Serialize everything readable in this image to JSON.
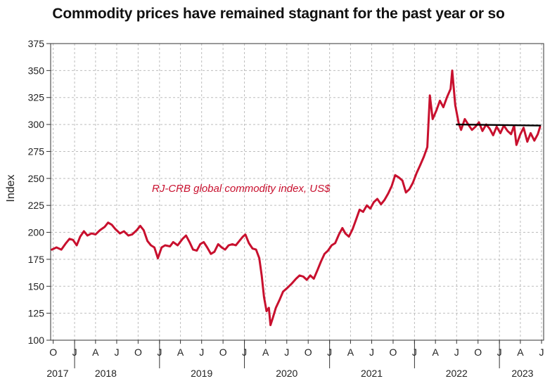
{
  "chart_data": {
    "type": "line",
    "title": "Commodity prices have remained stagnant for the past year or so",
    "xlabel": "",
    "ylabel": "Index",
    "ylim": [
      100,
      375
    ],
    "yticks": [
      100,
      125,
      150,
      175,
      200,
      225,
      250,
      275,
      300,
      325,
      350,
      375
    ],
    "xlim": [
      "2017-09-20",
      "2023-07-10"
    ],
    "month_ticks": [
      {
        "label": "O",
        "date": "2017-10-01"
      },
      {
        "label": "J",
        "date": "2018-01-01"
      },
      {
        "label": "A",
        "date": "2018-04-01"
      },
      {
        "label": "J",
        "date": "2018-07-01"
      },
      {
        "label": "O",
        "date": "2018-10-01"
      },
      {
        "label": "J",
        "date": "2019-01-01"
      },
      {
        "label": "A",
        "date": "2019-04-01"
      },
      {
        "label": "J",
        "date": "2019-07-01"
      },
      {
        "label": "O",
        "date": "2019-10-01"
      },
      {
        "label": "J",
        "date": "2020-01-01"
      },
      {
        "label": "A",
        "date": "2020-04-01"
      },
      {
        "label": "J",
        "date": "2020-07-01"
      },
      {
        "label": "O",
        "date": "2020-10-01"
      },
      {
        "label": "J",
        "date": "2021-01-01"
      },
      {
        "label": "A",
        "date": "2021-04-01"
      },
      {
        "label": "J",
        "date": "2021-07-01"
      },
      {
        "label": "O",
        "date": "2021-10-01"
      },
      {
        "label": "J",
        "date": "2022-01-01"
      },
      {
        "label": "A",
        "date": "2022-04-01"
      },
      {
        "label": "J",
        "date": "2022-07-01"
      },
      {
        "label": "O",
        "date": "2022-10-01"
      },
      {
        "label": "J",
        "date": "2023-01-01"
      },
      {
        "label": "A",
        "date": "2023-04-01"
      },
      {
        "label": "J",
        "date": "2023-07-01"
      }
    ],
    "year_labels": [
      {
        "label": "2017",
        "date": "2017-10-20"
      },
      {
        "label": "2018",
        "date": "2018-05-15"
      },
      {
        "label": "2019",
        "date": "2019-07-01"
      },
      {
        "label": "2020",
        "date": "2020-07-01"
      },
      {
        "label": "2021",
        "date": "2021-07-01"
      },
      {
        "label": "2022",
        "date": "2022-07-01"
      },
      {
        "label": "2023",
        "date": "2023-04-10"
      }
    ],
    "grid": true,
    "annotation": "RJ-CRB global commodity index, US$",
    "series": [
      {
        "color": "#c8102e",
        "points": [
          [
            "2017-09-25",
            184
          ],
          [
            "2017-10-15",
            186
          ],
          [
            "2017-11-05",
            184
          ],
          [
            "2017-11-25",
            190
          ],
          [
            "2017-12-10",
            194
          ],
          [
            "2017-12-25",
            193
          ],
          [
            "2018-01-10",
            188
          ],
          [
            "2018-01-25",
            196
          ],
          [
            "2018-02-10",
            201
          ],
          [
            "2018-02-25",
            197
          ],
          [
            "2018-03-15",
            199
          ],
          [
            "2018-04-01",
            198
          ],
          [
            "2018-04-20",
            202
          ],
          [
            "2018-05-10",
            205
          ],
          [
            "2018-05-25",
            209
          ],
          [
            "2018-06-10",
            207
          ],
          [
            "2018-06-25",
            203
          ],
          [
            "2018-07-15",
            199
          ],
          [
            "2018-08-01",
            201
          ],
          [
            "2018-08-20",
            197
          ],
          [
            "2018-09-05",
            198
          ],
          [
            "2018-09-25",
            202
          ],
          [
            "2018-10-10",
            206
          ],
          [
            "2018-10-25",
            202
          ],
          [
            "2018-11-10",
            192
          ],
          [
            "2018-11-25",
            188
          ],
          [
            "2018-12-10",
            186
          ],
          [
            "2018-12-25",
            176
          ],
          [
            "2019-01-10",
            186
          ],
          [
            "2019-01-25",
            188
          ],
          [
            "2019-02-15",
            187
          ],
          [
            "2019-03-01",
            191
          ],
          [
            "2019-03-20",
            188
          ],
          [
            "2019-04-10",
            194
          ],
          [
            "2019-04-25",
            197
          ],
          [
            "2019-05-10",
            191
          ],
          [
            "2019-05-25",
            184
          ],
          [
            "2019-06-10",
            183
          ],
          [
            "2019-06-25",
            189
          ],
          [
            "2019-07-10",
            191
          ],
          [
            "2019-07-25",
            186
          ],
          [
            "2019-08-10",
            180
          ],
          [
            "2019-08-25",
            182
          ],
          [
            "2019-09-10",
            189
          ],
          [
            "2019-09-25",
            186
          ],
          [
            "2019-10-10",
            184
          ],
          [
            "2019-10-25",
            188
          ],
          [
            "2019-11-10",
            189
          ],
          [
            "2019-11-25",
            188
          ],
          [
            "2019-12-10",
            192
          ],
          [
            "2019-12-25",
            196
          ],
          [
            "2020-01-05",
            198
          ],
          [
            "2020-01-20",
            190
          ],
          [
            "2020-02-05",
            185
          ],
          [
            "2020-02-20",
            184
          ],
          [
            "2020-03-05",
            176
          ],
          [
            "2020-03-15",
            160
          ],
          [
            "2020-03-25",
            140
          ],
          [
            "2020-04-05",
            127
          ],
          [
            "2020-04-15",
            130
          ],
          [
            "2020-04-22",
            114
          ],
          [
            "2020-05-01",
            120
          ],
          [
            "2020-05-15",
            130
          ],
          [
            "2020-06-01",
            138
          ],
          [
            "2020-06-15",
            145
          ],
          [
            "2020-07-01",
            148
          ],
          [
            "2020-07-20",
            152
          ],
          [
            "2020-08-10",
            157
          ],
          [
            "2020-08-25",
            160
          ],
          [
            "2020-09-10",
            159
          ],
          [
            "2020-09-25",
            156
          ],
          [
            "2020-10-10",
            160
          ],
          [
            "2020-10-25",
            157
          ],
          [
            "2020-11-10",
            165
          ],
          [
            "2020-11-25",
            173
          ],
          [
            "2020-12-10",
            180
          ],
          [
            "2020-12-25",
            183
          ],
          [
            "2021-01-10",
            188
          ],
          [
            "2021-01-25",
            190
          ],
          [
            "2021-02-10",
            198
          ],
          [
            "2021-02-25",
            204
          ],
          [
            "2021-03-10",
            199
          ],
          [
            "2021-03-25",
            196
          ],
          [
            "2021-04-10",
            203
          ],
          [
            "2021-04-25",
            212
          ],
          [
            "2021-05-10",
            221
          ],
          [
            "2021-05-25",
            219
          ],
          [
            "2021-06-10",
            225
          ],
          [
            "2021-06-25",
            222
          ],
          [
            "2021-07-10",
            228
          ],
          [
            "2021-07-25",
            231
          ],
          [
            "2021-08-10",
            226
          ],
          [
            "2021-08-25",
            230
          ],
          [
            "2021-09-10",
            236
          ],
          [
            "2021-09-25",
            243
          ],
          [
            "2021-10-10",
            253
          ],
          [
            "2021-10-25",
            251
          ],
          [
            "2021-11-10",
            248
          ],
          [
            "2021-11-25",
            237
          ],
          [
            "2021-12-10",
            240
          ],
          [
            "2021-12-25",
            246
          ],
          [
            "2022-01-10",
            255
          ],
          [
            "2022-01-25",
            262
          ],
          [
            "2022-02-10",
            270
          ],
          [
            "2022-02-25",
            279
          ],
          [
            "2022-03-08",
            327
          ],
          [
            "2022-03-20",
            305
          ],
          [
            "2022-04-05",
            313
          ],
          [
            "2022-04-20",
            322
          ],
          [
            "2022-05-05",
            316
          ],
          [
            "2022-05-20",
            325
          ],
          [
            "2022-06-05",
            333
          ],
          [
            "2022-06-12",
            350
          ],
          [
            "2022-06-25",
            318
          ],
          [
            "2022-07-10",
            301
          ],
          [
            "2022-07-20",
            295
          ],
          [
            "2022-08-05",
            305
          ],
          [
            "2022-08-20",
            300
          ],
          [
            "2022-09-05",
            295
          ],
          [
            "2022-09-20",
            298
          ],
          [
            "2022-10-05",
            302
          ],
          [
            "2022-10-20",
            294
          ],
          [
            "2022-11-05",
            300
          ],
          [
            "2022-11-20",
            296
          ],
          [
            "2022-12-05",
            290
          ],
          [
            "2022-12-20",
            298
          ],
          [
            "2023-01-05",
            292
          ],
          [
            "2023-01-20",
            299
          ],
          [
            "2023-02-05",
            294
          ],
          [
            "2023-02-20",
            291
          ],
          [
            "2023-03-05",
            299
          ],
          [
            "2023-03-15",
            281
          ],
          [
            "2023-04-01",
            291
          ],
          [
            "2023-04-15",
            297
          ],
          [
            "2023-05-01",
            284
          ],
          [
            "2023-05-15",
            292
          ],
          [
            "2023-05-31",
            285
          ],
          [
            "2023-06-15",
            291
          ],
          [
            "2023-06-25",
            298
          ]
        ]
      },
      {
        "color": "#000000",
        "points": [
          [
            "2022-07-01",
            300
          ],
          [
            "2023-06-25",
            299
          ]
        ]
      }
    ]
  }
}
